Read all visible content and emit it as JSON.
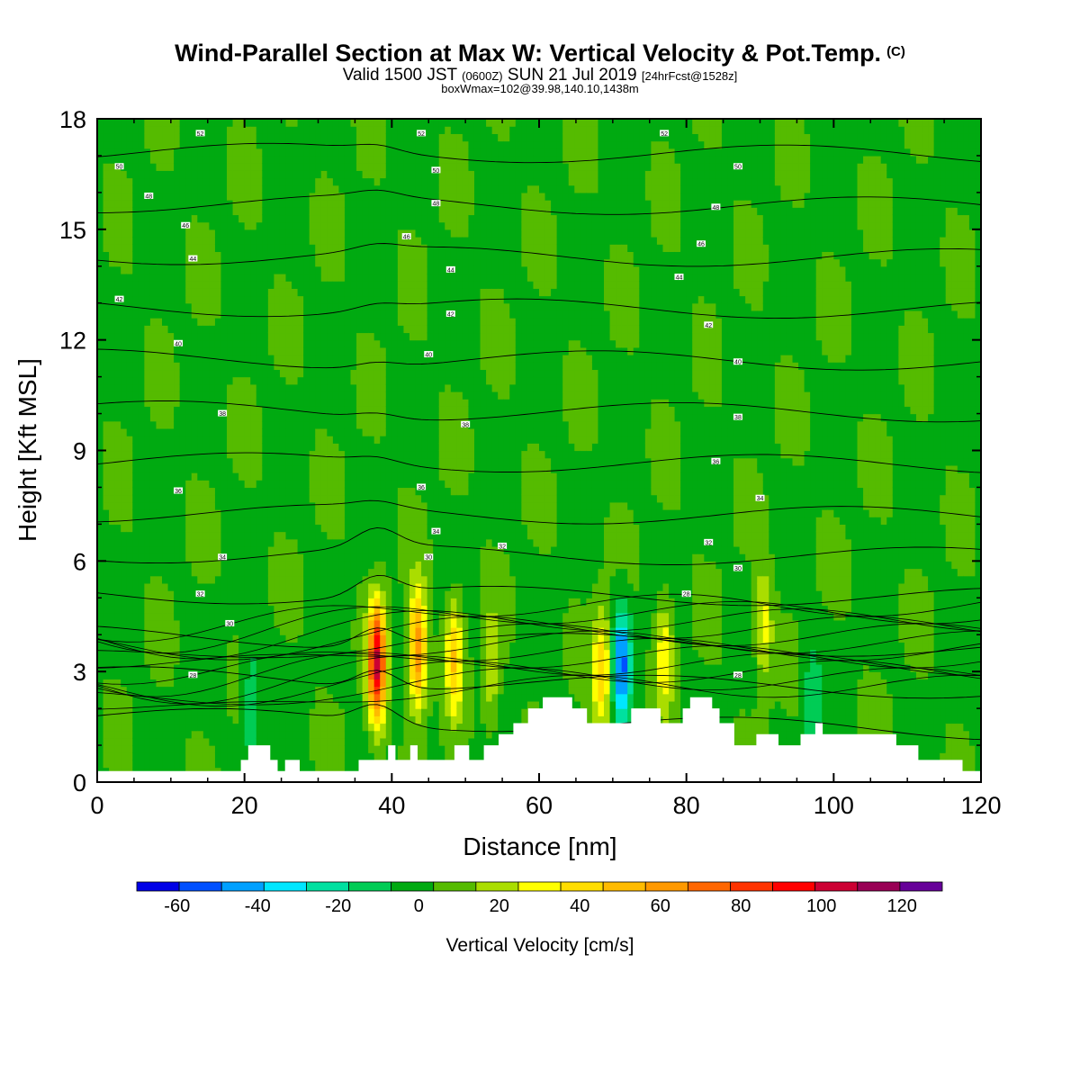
{
  "header": {
    "title": "Wind-Parallel Section at Max W: Vertical Velocity & Pot.Temp.",
    "copyright": "(C)",
    "valid_prefix": "Valid 1500 JST",
    "valid_utc": "(0600Z)",
    "valid_date": "SUN 21 Jul 2019",
    "forecast": "[24hrFcst@1528z]",
    "box_info": "boxWmax=102@39.98,140.10,1438m"
  },
  "chart_data": {
    "type": "heatmap",
    "xlabel": "Distance [nm]",
    "ylabel": "Height [Kft MSL]",
    "xlim": [
      0,
      120
    ],
    "ylim": [
      0,
      18
    ],
    "x_ticks": [
      "0",
      "20",
      "40",
      "60",
      "80",
      "100",
      "120"
    ],
    "y_ticks": [
      "0",
      "3",
      "6",
      "9",
      "12",
      "15",
      "18"
    ],
    "colorbar": {
      "label": "Vertical Velocity [cm/s]",
      "range": [
        -70,
        130
      ],
      "ticks": [
        "-60",
        "-40",
        "-20",
        "0",
        "20",
        "40",
        "60",
        "80",
        "100",
        "120"
      ],
      "colors": [
        "#0000e6",
        "#0050ff",
        "#00a0ff",
        "#00e6ff",
        "#00e0a0",
        "#00cc55",
        "#00aa11",
        "#55bb00",
        "#aadd00",
        "#ffff00",
        "#ffdd00",
        "#ffbb00",
        "#ff9900",
        "#ff6600",
        "#ff3300",
        "#ff0000",
        "#cc0033",
        "#990055",
        "#660099"
      ]
    },
    "background_w": 2,
    "updrafts": [
      {
        "x": 38.0,
        "z": 3.2,
        "w": 98
      },
      {
        "x": 43.5,
        "z": 3.6,
        "w": 68
      },
      {
        "x": 48.5,
        "z": 3.4,
        "w": 42
      },
      {
        "x": 53.5,
        "z": 3.0,
        "w": 22
      },
      {
        "x": 68.5,
        "z": 3.0,
        "w": 44
      },
      {
        "x": 71.2,
        "z": 3.2,
        "w": -52
      },
      {
        "x": 77.0,
        "z": 3.5,
        "w": 30
      },
      {
        "x": 90.5,
        "z": 4.2,
        "w": 28
      },
      {
        "x": 21.0,
        "z": 2.2,
        "w": -22
      },
      {
        "x": 97.0,
        "z": 2.2,
        "w": -18
      }
    ],
    "theta_levels": [
      26,
      28,
      30,
      32,
      34,
      36,
      38,
      40,
      42,
      44,
      46,
      48,
      50,
      52
    ],
    "theta_labels": [
      {
        "text": "52",
        "x": 14,
        "z": 17.6
      },
      {
        "text": "52",
        "x": 44,
        "z": 17.6
      },
      {
        "text": "52",
        "x": 77,
        "z": 17.6
      },
      {
        "text": "50",
        "x": 3,
        "z": 16.7
      },
      {
        "text": "50",
        "x": 46,
        "z": 16.6
      },
      {
        "text": "50",
        "x": 87,
        "z": 16.7
      },
      {
        "text": "48",
        "x": 7,
        "z": 15.9
      },
      {
        "text": "48",
        "x": 46,
        "z": 15.7
      },
      {
        "text": "48",
        "x": 84,
        "z": 15.6
      },
      {
        "text": "46",
        "x": 12,
        "z": 15.1
      },
      {
        "text": "46",
        "x": 42,
        "z": 14.8
      },
      {
        "text": "46",
        "x": 82,
        "z": 14.6
      },
      {
        "text": "44",
        "x": 13,
        "z": 14.2
      },
      {
        "text": "44",
        "x": 48,
        "z": 13.9
      },
      {
        "text": "44",
        "x": 79,
        "z": 13.7
      },
      {
        "text": "42",
        "x": 3,
        "z": 13.1
      },
      {
        "text": "42",
        "x": 48,
        "z": 12.7
      },
      {
        "text": "42",
        "x": 83,
        "z": 12.4
      },
      {
        "text": "40",
        "x": 11,
        "z": 11.9
      },
      {
        "text": "40",
        "x": 45,
        "z": 11.6
      },
      {
        "text": "40",
        "x": 87,
        "z": 11.4
      },
      {
        "text": "38",
        "x": 17,
        "z": 10.0
      },
      {
        "text": "38",
        "x": 50,
        "z": 9.7
      },
      {
        "text": "38",
        "x": 87,
        "z": 9.9
      },
      {
        "text": "36",
        "x": 11,
        "z": 7.9
      },
      {
        "text": "36",
        "x": 44,
        "z": 8.0
      },
      {
        "text": "36",
        "x": 84,
        "z": 8.7
      },
      {
        "text": "34",
        "x": 17,
        "z": 6.1
      },
      {
        "text": "34",
        "x": 46,
        "z": 6.8
      },
      {
        "text": "34",
        "x": 90,
        "z": 7.7
      },
      {
        "text": "32",
        "x": 14,
        "z": 5.1
      },
      {
        "text": "32",
        "x": 55,
        "z": 6.4
      },
      {
        "text": "32",
        "x": 83,
        "z": 6.5
      },
      {
        "text": "30",
        "x": 18,
        "z": 4.3
      },
      {
        "text": "30",
        "x": 45,
        "z": 6.1
      },
      {
        "text": "30",
        "x": 87,
        "z": 5.8
      },
      {
        "text": "28",
        "x": 13,
        "z": 2.9
      },
      {
        "text": "28",
        "x": 80,
        "z": 5.1
      },
      {
        "text": "28",
        "x": 87,
        "z": 2.9
      }
    ],
    "terrain_kft": [
      [
        0,
        0.3
      ],
      [
        19.5,
        0.3
      ],
      [
        19.5,
        0.6
      ],
      [
        20.5,
        0.6
      ],
      [
        20.5,
        1.0
      ],
      [
        23.5,
        1.0
      ],
      [
        23.5,
        0.6
      ],
      [
        24.5,
        0.6
      ],
      [
        24.5,
        0.3
      ],
      [
        25.5,
        0.3
      ],
      [
        25.5,
        0.6
      ],
      [
        27.5,
        0.6
      ],
      [
        27.5,
        0.3
      ],
      [
        35.5,
        0.3
      ],
      [
        35.5,
        0.6
      ],
      [
        39.5,
        0.6
      ],
      [
        39.5,
        1.0
      ],
      [
        40.5,
        1.0
      ],
      [
        40.5,
        0.6
      ],
      [
        42.5,
        0.6
      ],
      [
        42.5,
        1.0
      ],
      [
        43.5,
        1.0
      ],
      [
        43.5,
        0.6
      ],
      [
        48.5,
        0.6
      ],
      [
        48.5,
        1.0
      ],
      [
        50.5,
        1.0
      ],
      [
        50.5,
        0.6
      ],
      [
        52.5,
        0.6
      ],
      [
        52.5,
        1.0
      ],
      [
        54.5,
        1.0
      ],
      [
        54.5,
        1.3
      ],
      [
        56.5,
        1.3
      ],
      [
        56.5,
        1.6
      ],
      [
        58.5,
        1.6
      ],
      [
        58.5,
        2.0
      ],
      [
        60.5,
        2.0
      ],
      [
        60.5,
        2.3
      ],
      [
        64.5,
        2.3
      ],
      [
        64.5,
        2.0
      ],
      [
        66.5,
        2.0
      ],
      [
        66.5,
        1.6
      ],
      [
        72.5,
        1.6
      ],
      [
        72.5,
        2.0
      ],
      [
        76.5,
        2.0
      ],
      [
        76.5,
        1.6
      ],
      [
        79.5,
        1.6
      ],
      [
        79.5,
        2.0
      ],
      [
        80.5,
        2.0
      ],
      [
        80.5,
        2.3
      ],
      [
        83.5,
        2.3
      ],
      [
        83.5,
        2.0
      ],
      [
        84.5,
        2.0
      ],
      [
        84.5,
        1.6
      ],
      [
        86.5,
        1.6
      ],
      [
        86.5,
        1.0
      ],
      [
        89.5,
        1.0
      ],
      [
        89.5,
        1.3
      ],
      [
        92.5,
        1.3
      ],
      [
        92.5,
        1.0
      ],
      [
        95.5,
        1.0
      ],
      [
        95.5,
        1.3
      ],
      [
        97.5,
        1.3
      ],
      [
        97.5,
        1.6
      ],
      [
        98.5,
        1.6
      ],
      [
        98.5,
        1.3
      ],
      [
        108.5,
        1.3
      ],
      [
        108.5,
        1.0
      ],
      [
        111.5,
        1.0
      ],
      [
        111.5,
        0.6
      ],
      [
        117.5,
        0.6
      ],
      [
        117.5,
        0.3
      ],
      [
        120,
        0.3
      ]
    ]
  }
}
